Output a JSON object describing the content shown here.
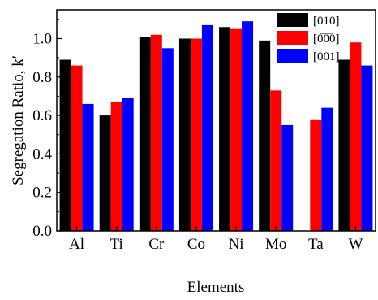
{
  "chart_data": {
    "type": "bar",
    "xlabel": "Elements",
    "ylabel": "Segregation Ratio, k′",
    "categories": [
      "Al",
      "Ti",
      "Cr",
      "Co",
      "Ni",
      "Mo",
      "Ta",
      "W"
    ],
    "ylim": [
      0.0,
      1.15
    ],
    "yticks": [
      0.0,
      0.2,
      0.4,
      0.6,
      0.8,
      1.0
    ],
    "ytick_labels": [
      "0.0",
      "0.2",
      "0.4",
      "0.6",
      "0.8",
      "1.0"
    ],
    "grid": false,
    "legend_position": "top-right",
    "series": [
      {
        "name": "[010]",
        "color": "#000000",
        "values": [
          0.89,
          0.6,
          1.01,
          1.0,
          1.06,
          0.99,
          null,
          0.89
        ]
      },
      {
        "name": "[0̅0̅0]",
        "color": "#ff0000",
        "values": [
          0.86,
          0.67,
          1.02,
          1.0,
          1.05,
          0.73,
          0.58,
          0.98
        ]
      },
      {
        "name": "[001]",
        "color": "#0000ff",
        "values": [
          0.66,
          0.69,
          0.95,
          1.07,
          1.09,
          0.55,
          0.64,
          0.86
        ]
      }
    ]
  }
}
